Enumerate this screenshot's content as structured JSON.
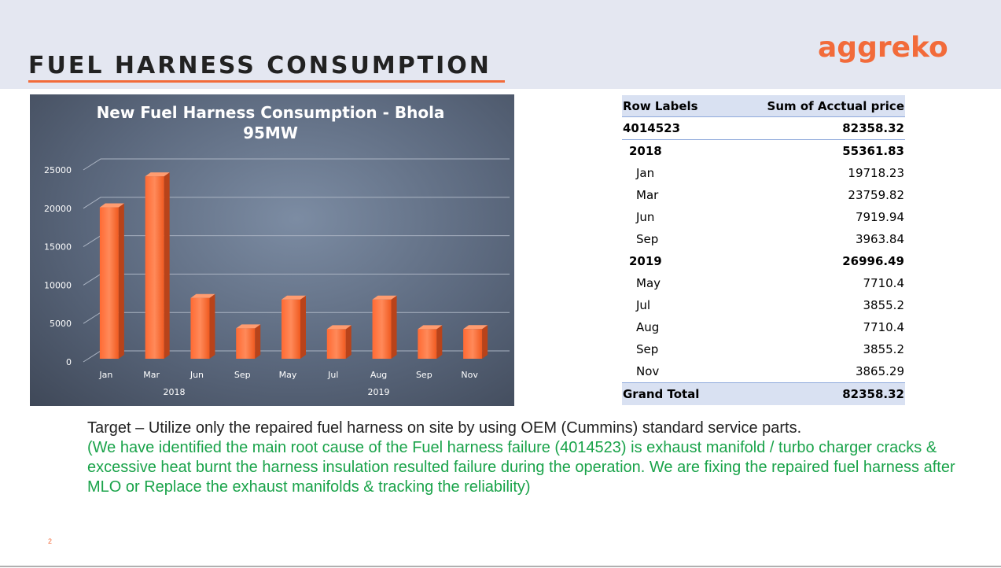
{
  "slide": {
    "title": "FUEL HARNESS CONSUMPTION",
    "logo": "aggreko",
    "page_number": "2"
  },
  "colors": {
    "accent": "#f26b3a",
    "bar": "#ff6a33",
    "note_green": "#1aa34a"
  },
  "chart_data": {
    "type": "bar",
    "title": "New Fuel Harness Consumption - Bhola 95MW",
    "title_lines": [
      "New Fuel Harness Consumption  - Bhola",
      "95MW"
    ],
    "categories": [
      "Jan",
      "Mar",
      "Jun",
      "Sep",
      "May",
      "Jul",
      "Aug",
      "Sep",
      "Nov"
    ],
    "groups": [
      {
        "label": "2018",
        "start": 0,
        "end": 3
      },
      {
        "label": "2019",
        "start": 4,
        "end": 8
      }
    ],
    "values": [
      19718.23,
      23759.82,
      7919.94,
      3963.84,
      7710.4,
      3855.2,
      7710.4,
      3855.2,
      3865.29
    ],
    "ylim": [
      0,
      25000
    ],
    "yticks": [
      0,
      5000,
      10000,
      15000,
      20000,
      25000
    ],
    "grid": true,
    "legend": "none",
    "bar_style": "3d-column"
  },
  "pivot": {
    "header": {
      "label": "Row Labels",
      "value": "Sum of Acctual price"
    },
    "item": {
      "label": "4014523",
      "value": "82358.32"
    },
    "years": [
      {
        "label": "2018",
        "value": "55361.83",
        "months": [
          {
            "label": "Jan",
            "value": "19718.23"
          },
          {
            "label": "Mar",
            "value": "23759.82"
          },
          {
            "label": "Jun",
            "value": "7919.94"
          },
          {
            "label": "Sep",
            "value": "3963.84"
          }
        ]
      },
      {
        "label": "2019",
        "value": "26996.49",
        "months": [
          {
            "label": "May",
            "value": "7710.4"
          },
          {
            "label": "Jul",
            "value": "3855.2"
          },
          {
            "label": "Aug",
            "value": "7710.4"
          },
          {
            "label": "Sep",
            "value": "3855.2"
          },
          {
            "label": "Nov",
            "value": "3865.29"
          }
        ]
      }
    ],
    "total": {
      "label": "Grand Total",
      "value": "82358.32"
    }
  },
  "notes": {
    "target": "Target – Utilize only the repaired fuel harness on site by using OEM (Cummins) standard service parts.",
    "detail": "(We have identified the main root cause of the Fuel harness failure (4014523)  is exhaust manifold / turbo charger cracks & excessive heat burnt the harness insulation resulted failure during the operation. We are fixing the repaired fuel harness after MLO or Replace the exhaust manifolds & tracking the reliability)"
  }
}
